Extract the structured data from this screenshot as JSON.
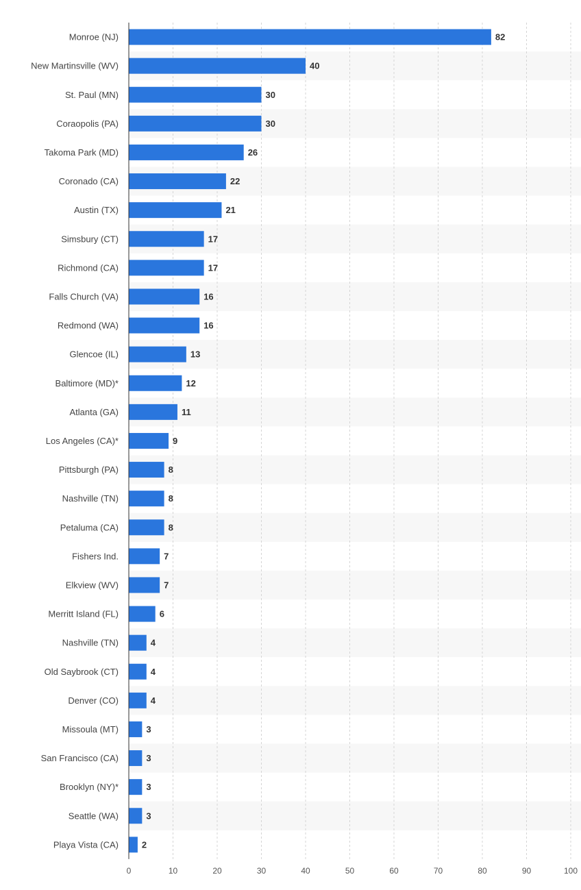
{
  "chart_data": {
    "type": "bar",
    "orientation": "horizontal",
    "categories": [
      "Monroe (NJ)",
      "New Martinsville (WV)",
      "St. Paul (MN)",
      "Coraopolis (PA)",
      "Takoma Park (MD)",
      "Coronado (CA)",
      "Austin (TX)",
      "Simsbury (CT)",
      "Richmond (CA)",
      "Falls Church (VA)",
      "Redmond (WA)",
      "Glencoe (IL)",
      "Baltimore (MD)*",
      "Atlanta (GA)",
      "Los Angeles (CA)*",
      "Pittsburgh (PA)",
      "Nashville (TN)",
      "Petaluma (CA)",
      "Fishers Ind.",
      "Elkview (WV)",
      "Merritt Island (FL)",
      "Nashville (TN)",
      "Old Saybrook (CT)",
      "Denver (CO)",
      "Missoula (MT)",
      "San Francisco (CA)",
      "Brooklyn (NY)*",
      "Seattle (WA)",
      "Playa Vista (CA)"
    ],
    "values": [
      82,
      40,
      30,
      30,
      26,
      22,
      21,
      17,
      17,
      16,
      16,
      13,
      12,
      11,
      9,
      8,
      8,
      8,
      7,
      7,
      6,
      4,
      4,
      4,
      3,
      3,
      3,
      3,
      2
    ],
    "xlim": [
      0,
      100
    ],
    "x_ticks": [
      "0",
      "10",
      "20",
      "30",
      "40",
      "50",
      "60",
      "70",
      "80",
      "90",
      "100"
    ],
    "title": "",
    "xlabel": "",
    "ylabel": "",
    "grid": "vertical dashed",
    "legend": "none",
    "data_labels": true,
    "colors": {
      "bar": "#2a76dd",
      "stripe": "#f7f7f7",
      "grid": "#d4d4d4",
      "axis": "#333333"
    }
  }
}
